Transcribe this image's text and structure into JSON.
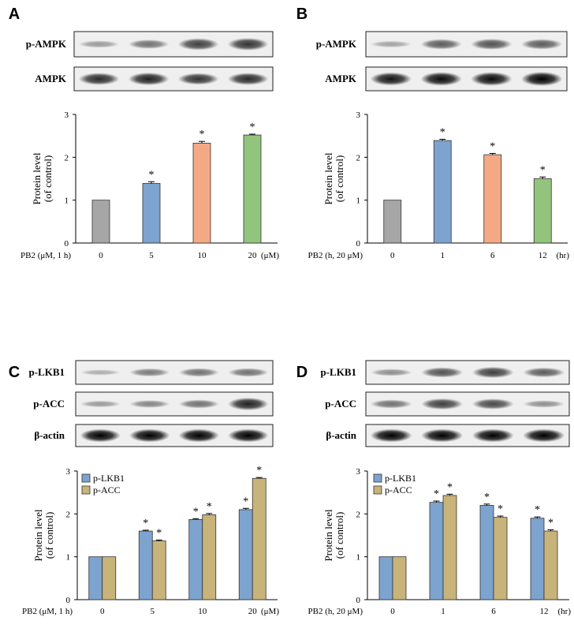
{
  "panels": [
    {
      "letter": "A",
      "blots": [
        {
          "label": "p-AMPK",
          "intensities": [
            0.25,
            0.45,
            0.7,
            0.75
          ]
        },
        {
          "label": "AMPK",
          "intensities": [
            0.8,
            0.85,
            0.75,
            0.8
          ]
        }
      ],
      "chart_data": {
        "type": "bar",
        "ylabel": [
          "Protein level",
          "(of control)"
        ],
        "ylim": [
          0,
          3
        ],
        "yticks": [
          0,
          1,
          2,
          3
        ],
        "xlabel_left": "PB2 (μM, 1 h)",
        "unit_right": "(μM)",
        "categories": [
          "0",
          "5",
          "10",
          "20"
        ],
        "series": [
          {
            "values": [
              1.0,
              1.39,
              2.33,
              2.52
            ],
            "errors": [
              0,
              0.04,
              0.04,
              0.02
            ],
            "sig": [
              false,
              true,
              true,
              true
            ],
            "colors": [
              "#a6a6a6",
              "#7da3cf",
              "#f4a985",
              "#93c47d"
            ]
          }
        ],
        "legend": []
      }
    },
    {
      "letter": "B",
      "blots": [
        {
          "label": "p-AMPK",
          "intensities": [
            0.2,
            0.55,
            0.6,
            0.55
          ]
        },
        {
          "label": "AMPK",
          "intensities": [
            0.9,
            0.95,
            0.95,
            1.0
          ]
        }
      ],
      "chart_data": {
        "type": "bar",
        "ylabel": [
          "Protein level",
          "(of control)"
        ],
        "ylim": [
          0,
          3
        ],
        "yticks": [
          0,
          1,
          2,
          3
        ],
        "xlabel_left": "PB2 (h, 20 μM)",
        "unit_right": "(hr)",
        "categories": [
          "0",
          "1",
          "6",
          "12"
        ],
        "series": [
          {
            "values": [
              1.0,
              2.39,
              2.06,
              1.5
            ],
            "errors": [
              0,
              0.03,
              0.03,
              0.04
            ],
            "sig": [
              false,
              true,
              true,
              true
            ],
            "colors": [
              "#a6a6a6",
              "#7da3cf",
              "#f4a985",
              "#93c47d"
            ]
          }
        ],
        "legend": []
      }
    },
    {
      "letter": "C",
      "blots": [
        {
          "label": "p-LKB1",
          "intensities": [
            0.15,
            0.4,
            0.45,
            0.45
          ]
        },
        {
          "label": "p-ACC",
          "intensities": [
            0.25,
            0.35,
            0.45,
            0.85
          ]
        },
        {
          "label": "β-actin",
          "intensities": [
            1.0,
            1.0,
            1.0,
            1.0
          ]
        }
      ],
      "chart_data": {
        "type": "bar",
        "ylabel": [
          "Protein level",
          "(of control)"
        ],
        "ylim": [
          0,
          3
        ],
        "yticks": [
          0,
          1,
          2,
          3
        ],
        "xlabel_left": "PB2 (μM, 1 h)",
        "unit_right": "(μM)",
        "categories": [
          "0",
          "5",
          "10",
          "20"
        ],
        "series": [
          {
            "name": "p-LKB1",
            "values": [
              1.0,
              1.6,
              1.87,
              2.1
            ],
            "errors": [
              0,
              0.02,
              0.02,
              0.03
            ],
            "sig": [
              false,
              true,
              true,
              true
            ],
            "colors": [
              "#7da3cf",
              "#7da3cf",
              "#7da3cf",
              "#7da3cf"
            ]
          },
          {
            "name": "p-ACC",
            "values": [
              1.0,
              1.37,
              1.98,
              2.83
            ],
            "errors": [
              0,
              0.02,
              0.03,
              0.02
            ],
            "sig": [
              false,
              true,
              true,
              true
            ],
            "colors": [
              "#c8b37a",
              "#c8b37a",
              "#c8b37a",
              "#c8b37a"
            ]
          }
        ],
        "legend": [
          "p-LKB1",
          "p-ACC"
        ]
      }
    },
    {
      "letter": "D",
      "blots": [
        {
          "label": "p-LKB1",
          "intensities": [
            0.3,
            0.6,
            0.7,
            0.55
          ]
        },
        {
          "label": "p-ACC",
          "intensities": [
            0.45,
            0.7,
            0.65,
            0.3
          ]
        },
        {
          "label": "β-actin",
          "intensities": [
            1.0,
            1.0,
            1.0,
            1.0
          ]
        }
      ],
      "chart_data": {
        "type": "bar",
        "ylabel": [
          "Protein level",
          "(of control)"
        ],
        "ylim": [
          0,
          3
        ],
        "yticks": [
          0,
          1,
          2,
          3
        ],
        "xlabel_left": "PB2 (h, 20 μM)",
        "unit_right": "(hr)",
        "categories": [
          "0",
          "1",
          "6",
          "12"
        ],
        "series": [
          {
            "name": "p-LKB1",
            "values": [
              1.0,
              2.27,
              2.2,
              1.9
            ],
            "errors": [
              0,
              0.03,
              0.03,
              0.03
            ],
            "sig": [
              false,
              true,
              true,
              true
            ],
            "colors": [
              "#7da3cf",
              "#7da3cf",
              "#7da3cf",
              "#7da3cf"
            ]
          },
          {
            "name": "p-ACC",
            "values": [
              1.0,
              2.43,
              1.92,
              1.6
            ],
            "errors": [
              0,
              0.03,
              0.03,
              0.03
            ],
            "sig": [
              false,
              true,
              true,
              true
            ],
            "colors": [
              "#c8b37a",
              "#c8b37a",
              "#c8b37a",
              "#c8b37a"
            ]
          }
        ],
        "legend": [
          "p-LKB1",
          "p-ACC"
        ]
      }
    }
  ],
  "significance_mark": "*"
}
